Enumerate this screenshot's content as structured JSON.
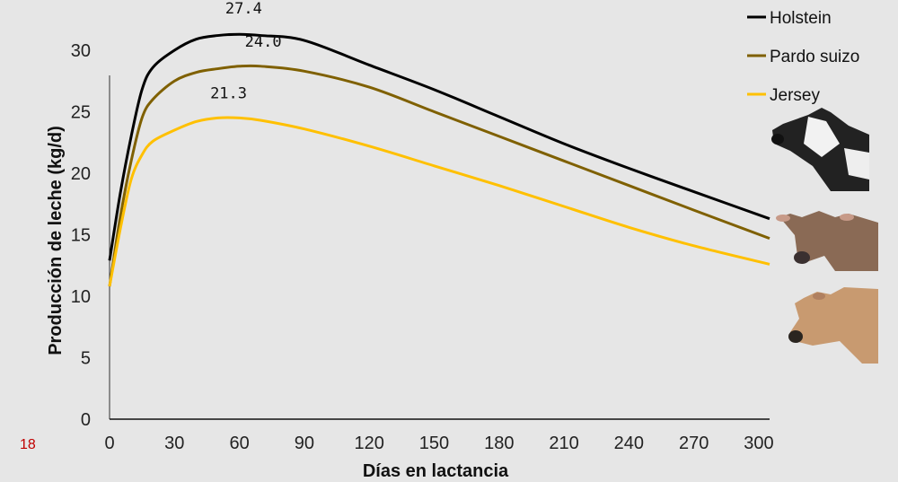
{
  "page_number": "18",
  "chart_data": {
    "type": "line",
    "title": "",
    "xlabel": "Días en lactancia",
    "ylabel": "Producción de leche (kg/d)",
    "xlim": [
      0,
      305
    ],
    "ylim": [
      0,
      32
    ],
    "xticks": [
      0,
      30,
      60,
      90,
      120,
      150,
      180,
      210,
      240,
      270,
      300
    ],
    "yticks": [
      0,
      5,
      10,
      15,
      20,
      25,
      30
    ],
    "grid": false,
    "legend": "top-right",
    "x": [
      0,
      5,
      10,
      15,
      20,
      30,
      40,
      50,
      60,
      70,
      90,
      120,
      150,
      180,
      210,
      240,
      270,
      305
    ],
    "series": [
      {
        "name": "Holstein",
        "color": "#000000",
        "values": [
          12.9,
          18.4,
          23.0,
          26.8,
          28.6,
          30.0,
          30.9,
          31.2,
          31.3,
          31.2,
          30.8,
          28.8,
          26.8,
          24.6,
          22.4,
          20.4,
          18.5,
          16.3
        ],
        "label": {
          "text": "27.4",
          "x": 62,
          "y": 33.0
        }
      },
      {
        "name": "Pardo suizo",
        "color": "#7f6000",
        "values": [
          10.8,
          16.5,
          21.0,
          24.5,
          26.0,
          27.5,
          28.2,
          28.5,
          28.7,
          28.7,
          28.3,
          27.0,
          25.0,
          23.0,
          21.0,
          19.0,
          17.0,
          14.7
        ],
        "label": {
          "text": "24.0",
          "x": 71,
          "y": 30.3
        }
      },
      {
        "name": "Jersey",
        "color": "#ffc000",
        "values": [
          10.8,
          15.5,
          19.5,
          21.5,
          22.6,
          23.5,
          24.2,
          24.5,
          24.5,
          24.3,
          23.6,
          22.2,
          20.6,
          19.0,
          17.3,
          15.6,
          14.1,
          12.6
        ],
        "label": {
          "text": "21.3",
          "x": 55,
          "y": 26.1
        }
      }
    ]
  }
}
